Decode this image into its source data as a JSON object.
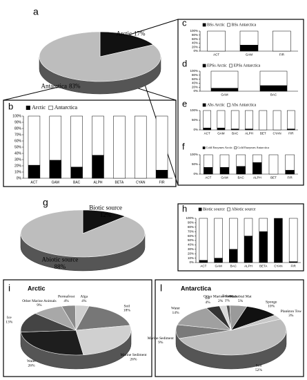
{
  "chart_data": [
    {
      "type": "pie",
      "label": "a",
      "labels": [
        "Arctic",
        "Antarctica"
      ],
      "values": [
        17,
        83
      ],
      "value_labels": [
        "17%",
        "83%"
      ],
      "colors": [
        "#111111",
        "#bdbdbd"
      ]
    },
    {
      "type": "bar",
      "label": "b",
      "categories": [
        "ACT",
        "GAM",
        "BAC",
        "ALPH",
        "BETA",
        "CYAN",
        "FIR"
      ],
      "series": [
        {
          "name": "Arctic",
          "color": "#000000",
          "values": [
            21,
            29,
            18,
            37,
            0,
            0,
            13
          ]
        },
        {
          "name": "Antarctica",
          "color": "#ffffff",
          "values": [
            79,
            71,
            82,
            63,
            100,
            100,
            87
          ]
        }
      ],
      "ylim": [
        0,
        100
      ],
      "yticks": [
        {
          "value": 0,
          "label": "0%"
        },
        {
          "value": 10,
          "label": "10%"
        },
        {
          "value": 20,
          "label": "20%"
        },
        {
          "value": 30,
          "label": "30%"
        },
        {
          "value": 40,
          "label": "40%"
        },
        {
          "value": 50,
          "label": "50%"
        },
        {
          "value": 60,
          "label": "60%"
        },
        {
          "value": 70,
          "label": "70%"
        },
        {
          "value": 80,
          "label": "80%"
        },
        {
          "value": 90,
          "label": "90%"
        },
        {
          "value": 100,
          "label": "100%"
        }
      ]
    },
    {
      "type": "bar",
      "label": "c",
      "categories": [
        "ACT",
        "GAM",
        "FIR"
      ],
      "series": [
        {
          "name": "BSs Arctic",
          "color": "#000000",
          "values": [
            0,
            30,
            0
          ]
        },
        {
          "name": "BSs Antarctica",
          "color": "#ffffff",
          "values": [
            100,
            70,
            100
          ]
        }
      ],
      "ylim": [
        0,
        100
      ],
      "yticks": [
        {
          "value": 0,
          "label": "0%"
        },
        {
          "value": 20,
          "label": "20%"
        },
        {
          "value": 40,
          "label": "40%"
        },
        {
          "value": 60,
          "label": "60%"
        },
        {
          "value": 80,
          "label": "80%"
        },
        {
          "value": 100,
          "label": "100%"
        }
      ]
    },
    {
      "type": "bar",
      "label": "d",
      "categories": [
        "GAM",
        "BAC"
      ],
      "series": [
        {
          "name": "EPSs Arctic",
          "color": "#000000",
          "values": [
            15,
            28
          ]
        },
        {
          "name": "EPSs Antarctica",
          "color": "#ffffff",
          "values": [
            85,
            72
          ]
        }
      ],
      "ylim": [
        0,
        100
      ],
      "yticks": [
        {
          "value": 0,
          "label": "0%"
        },
        {
          "value": 20,
          "label": "20%"
        },
        {
          "value": 40,
          "label": "40%"
        },
        {
          "value": 60,
          "label": "60%"
        },
        {
          "value": 80,
          "label": "80%"
        },
        {
          "value": 100,
          "label": "100%"
        }
      ]
    },
    {
      "type": "bar",
      "label": "e",
      "categories": [
        "ACT",
        "GAM",
        "BAC",
        "ALPH",
        "BET",
        "CYAN",
        "FIR"
      ],
      "series": [
        {
          "name": "Abs Arctic",
          "color": "#000000",
          "values": [
            10,
            10,
            5,
            5,
            0,
            0,
            5
          ]
        },
        {
          "name": "Abs Antarctica",
          "color": "#ffffff",
          "values": [
            90,
            90,
            95,
            95,
            100,
            100,
            95
          ]
        }
      ],
      "ylim": [
        0,
        100
      ],
      "yticks": [
        {
          "value": 0,
          "label": "0%"
        },
        {
          "value": 50,
          "label": "50%"
        },
        {
          "value": 100,
          "label": "100%"
        }
      ]
    },
    {
      "type": "bar",
      "label": "f",
      "categories": [
        "ACT",
        "GAM",
        "BAC",
        "ALPH",
        "BET",
        "FIR"
      ],
      "series": [
        {
          "name": "Cold Enzymes Arctic",
          "color": "#000000",
          "values": [
            35,
            35,
            40,
            60,
            0,
            20
          ]
        },
        {
          "name": "Cold Enzymes Antarctica",
          "color": "#ffffff",
          "values": [
            65,
            65,
            60,
            40,
            100,
            80
          ]
        }
      ],
      "ylim": [
        0,
        100
      ],
      "yticks": [
        {
          "value": 0,
          "label": "0%"
        },
        {
          "value": 50,
          "label": "50%"
        },
        {
          "value": 100,
          "label": "100%"
        }
      ]
    },
    {
      "type": "pie",
      "label": "g",
      "labels": [
        "Biotic source",
        "Abiotic source"
      ],
      "values": [
        12,
        88
      ],
      "value_labels": [
        "12%",
        "88%"
      ],
      "colors": [
        "#111111",
        "#bdbdbd"
      ]
    },
    {
      "type": "bar",
      "label": "h",
      "categories": [
        "ACT",
        "GAM",
        "BAC",
        "ALPH",
        "BETA",
        "CYAN",
        "FIR"
      ],
      "series": [
        {
          "name": "Biotic source",
          "color": "#000000",
          "values": [
            5,
            10,
            30,
            60,
            70,
            100,
            2
          ]
        },
        {
          "name": "Abiotic source",
          "color": "#ffffff",
          "values": [
            95,
            90,
            70,
            40,
            30,
            0,
            98
          ]
        }
      ],
      "ylim": [
        0,
        100
      ],
      "yticks": [
        {
          "value": 0,
          "label": "0%"
        },
        {
          "value": 10,
          "label": "10%"
        },
        {
          "value": 20,
          "label": "20%"
        },
        {
          "value": 30,
          "label": "30%"
        },
        {
          "value": 40,
          "label": "40%"
        },
        {
          "value": 50,
          "label": "50%"
        },
        {
          "value": 60,
          "label": "60%"
        },
        {
          "value": 70,
          "label": "70%"
        },
        {
          "value": 80,
          "label": "80%"
        },
        {
          "value": 90,
          "label": "90%"
        },
        {
          "value": 100,
          "label": "100%"
        }
      ]
    },
    {
      "type": "pie",
      "label": "i",
      "title": "Arctic",
      "labels": [
        "Permafrost",
        "Alga",
        "Soil",
        "Marine Sediment",
        "Water",
        "Ice",
        "Other Marine Animals"
      ],
      "values": [
        4,
        4,
        18,
        26,
        26,
        13,
        9
      ],
      "value_labels": [
        "4%",
        "4%",
        "18%",
        "26%",
        "26%",
        "13%",
        "9%"
      ],
      "colors": [
        "#8a8a8a",
        "#cfcfcf",
        "#777777",
        "#d0d0d0",
        "#1e1e1e",
        "#444444",
        "#a8a8a8"
      ]
    },
    {
      "type": "pie",
      "label": "l",
      "title": "Antarctica",
      "labels": [
        "Brines",
        "Microbial Mat",
        "Sponge",
        "Plankton Tow",
        "Soil",
        "Marine Sediment",
        "Water",
        "Ice",
        "Other Marine Animals"
      ],
      "values": [
        1,
        5,
        10,
        3,
        52,
        9,
        14,
        4,
        2
      ],
      "value_labels": [
        "1%",
        "5%",
        "10%",
        "3%",
        "52%",
        "9%",
        "14%",
        "4%",
        "2%"
      ],
      "colors": [
        "#555555",
        "#9a9a9a",
        "#111111",
        "#c8c8c8",
        "#bdbdbd",
        "#7a7a7a",
        "#a0a0a0",
        "#333333",
        "#d8d8d8"
      ]
    }
  ]
}
